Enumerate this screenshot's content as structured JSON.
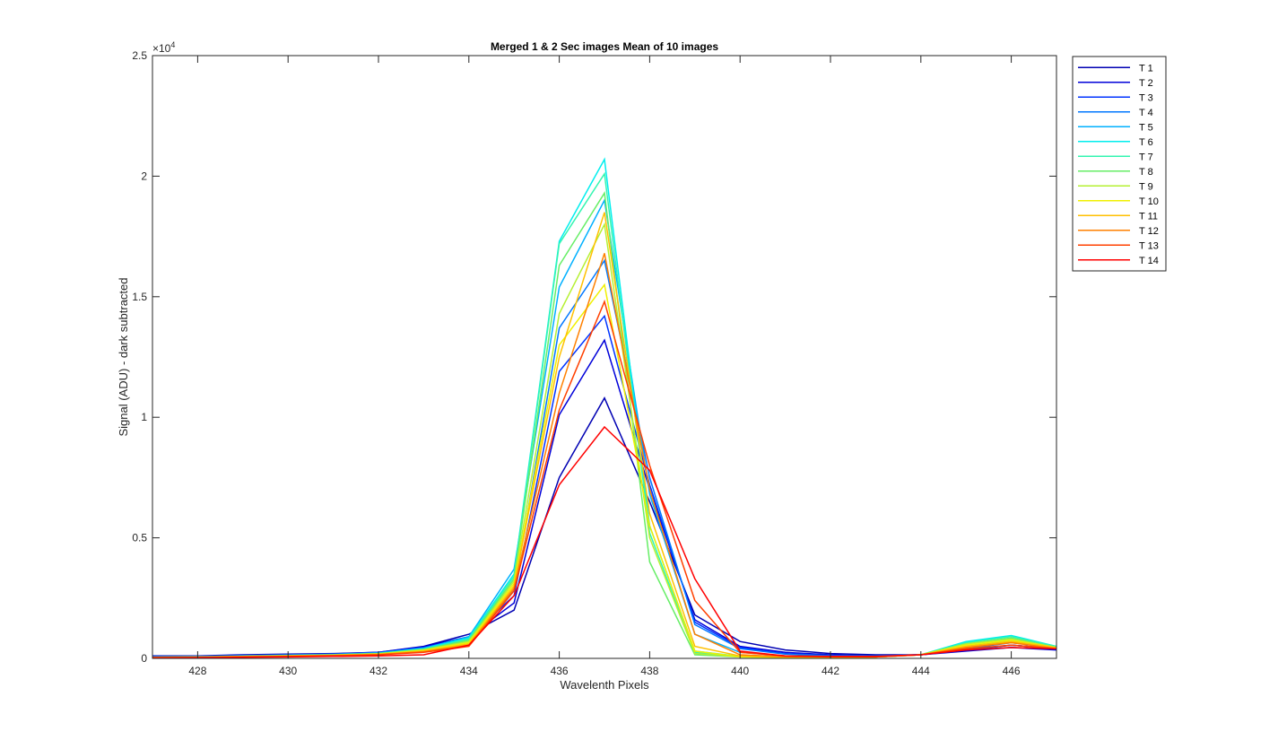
{
  "chart_data": {
    "type": "line",
    "title": "Merged 1 & 2 Sec images  Mean of 10 images",
    "xlabel": "Wavelenth Pixels",
    "ylabel": "Signal (ADU) - dark subtracted",
    "xlim": [
      427,
      447
    ],
    "ylim": [
      0,
      25000
    ],
    "x_ticks": [
      428,
      430,
      432,
      434,
      436,
      438,
      440,
      442,
      444,
      446
    ],
    "y_ticks": [
      0,
      5000,
      10000,
      15000,
      20000,
      25000
    ],
    "y_tick_labels": [
      "0",
      "0.5",
      "1",
      "1.5",
      "2",
      "2.5"
    ],
    "y_exponent_base": "×10",
    "y_exponent_power": "4",
    "grid": false,
    "legend_position": "outside-top-right",
    "x": [
      427,
      428,
      429,
      430,
      431,
      432,
      433,
      434,
      435,
      436,
      437,
      438,
      439,
      440,
      441,
      442,
      443,
      444,
      445,
      446,
      447
    ],
    "series": [
      {
        "name": "T 1",
        "color": "#0000b3",
        "values": [
          100,
          100,
          150,
          180,
          200,
          250,
          500,
          1000,
          2000,
          7500,
          10800,
          6500,
          1800,
          700,
          350,
          200,
          150,
          150,
          350,
          550,
          400
        ]
      },
      {
        "name": "T 2",
        "color": "#0000d9",
        "values": [
          80,
          90,
          130,
          160,
          190,
          250,
          480,
          900,
          2300,
          10100,
          13200,
          7000,
          1600,
          500,
          250,
          150,
          100,
          150,
          300,
          450,
          350
        ]
      },
      {
        "name": "T 3",
        "color": "#0033ff",
        "values": [
          70,
          80,
          120,
          150,
          180,
          240,
          450,
          850,
          2600,
          11900,
          14200,
          7200,
          1500,
          450,
          200,
          120,
          100,
          150,
          350,
          550,
          400
        ]
      },
      {
        "name": "T 4",
        "color": "#0077ff",
        "values": [
          60,
          70,
          110,
          140,
          170,
          230,
          430,
          800,
          2800,
          13700,
          16500,
          7500,
          1400,
          400,
          180,
          100,
          100,
          150,
          400,
          650,
          450
        ]
      },
      {
        "name": "T 5",
        "color": "#00b0ff",
        "values": [
          60,
          70,
          100,
          130,
          160,
          220,
          420,
          900,
          3700,
          15400,
          19000,
          6800,
          1000,
          250,
          100,
          80,
          80,
          150,
          500,
          750,
          450
        ]
      },
      {
        "name": "T 6",
        "color": "#00eeee",
        "values": [
          50,
          60,
          90,
          120,
          150,
          210,
          400,
          850,
          3500,
          17300,
          20700,
          5500,
          300,
          80,
          50,
          50,
          60,
          150,
          700,
          950,
          500
        ]
      },
      {
        "name": "T 7",
        "color": "#33f5b0",
        "values": [
          50,
          60,
          90,
          120,
          150,
          200,
          380,
          800,
          3400,
          17200,
          20100,
          5200,
          250,
          70,
          50,
          50,
          60,
          150,
          650,
          900,
          500
        ]
      },
      {
        "name": "T 8",
        "color": "#66ee66",
        "values": [
          50,
          60,
          90,
          110,
          140,
          200,
          370,
          750,
          3300,
          16300,
          19300,
          4000,
          150,
          60,
          50,
          50,
          60,
          150,
          600,
          850,
          450
        ]
      },
      {
        "name": "T 9",
        "color": "#b5f032",
        "values": [
          50,
          55,
          85,
          110,
          140,
          190,
          350,
          700,
          3200,
          14300,
          18000,
          5000,
          200,
          60,
          50,
          50,
          60,
          150,
          600,
          800,
          450
        ]
      },
      {
        "name": "T 10",
        "color": "#f0f000",
        "values": [
          50,
          55,
          80,
          100,
          130,
          180,
          330,
          650,
          3100,
          13000,
          15500,
          5500,
          300,
          70,
          50,
          50,
          60,
          150,
          550,
          750,
          450
        ]
      },
      {
        "name": "T 11",
        "color": "#ffc000",
        "values": [
          40,
          50,
          80,
          100,
          130,
          170,
          300,
          600,
          3000,
          12500,
          18500,
          6000,
          500,
          100,
          60,
          60,
          60,
          150,
          500,
          700,
          450
        ]
      },
      {
        "name": "T 12",
        "color": "#ff8000",
        "values": [
          40,
          50,
          70,
          90,
          120,
          160,
          280,
          550,
          2900,
          11000,
          16800,
          7000,
          1000,
          150,
          70,
          60,
          60,
          150,
          450,
          650,
          400
        ]
      },
      {
        "name": "T 13",
        "color": "#ff4000",
        "values": [
          30,
          40,
          60,
          80,
          110,
          150,
          250,
          500,
          2800,
          10300,
          14800,
          8000,
          2400,
          250,
          100,
          70,
          70,
          150,
          400,
          550,
          400
        ]
      },
      {
        "name": "T 14",
        "color": "#ff0000",
        "values": [
          20,
          30,
          50,
          60,
          80,
          100,
          150,
          550,
          2600,
          7200,
          9600,
          7800,
          3300,
          300,
          100,
          80,
          80,
          150,
          350,
          450,
          400
        ]
      }
    ]
  }
}
